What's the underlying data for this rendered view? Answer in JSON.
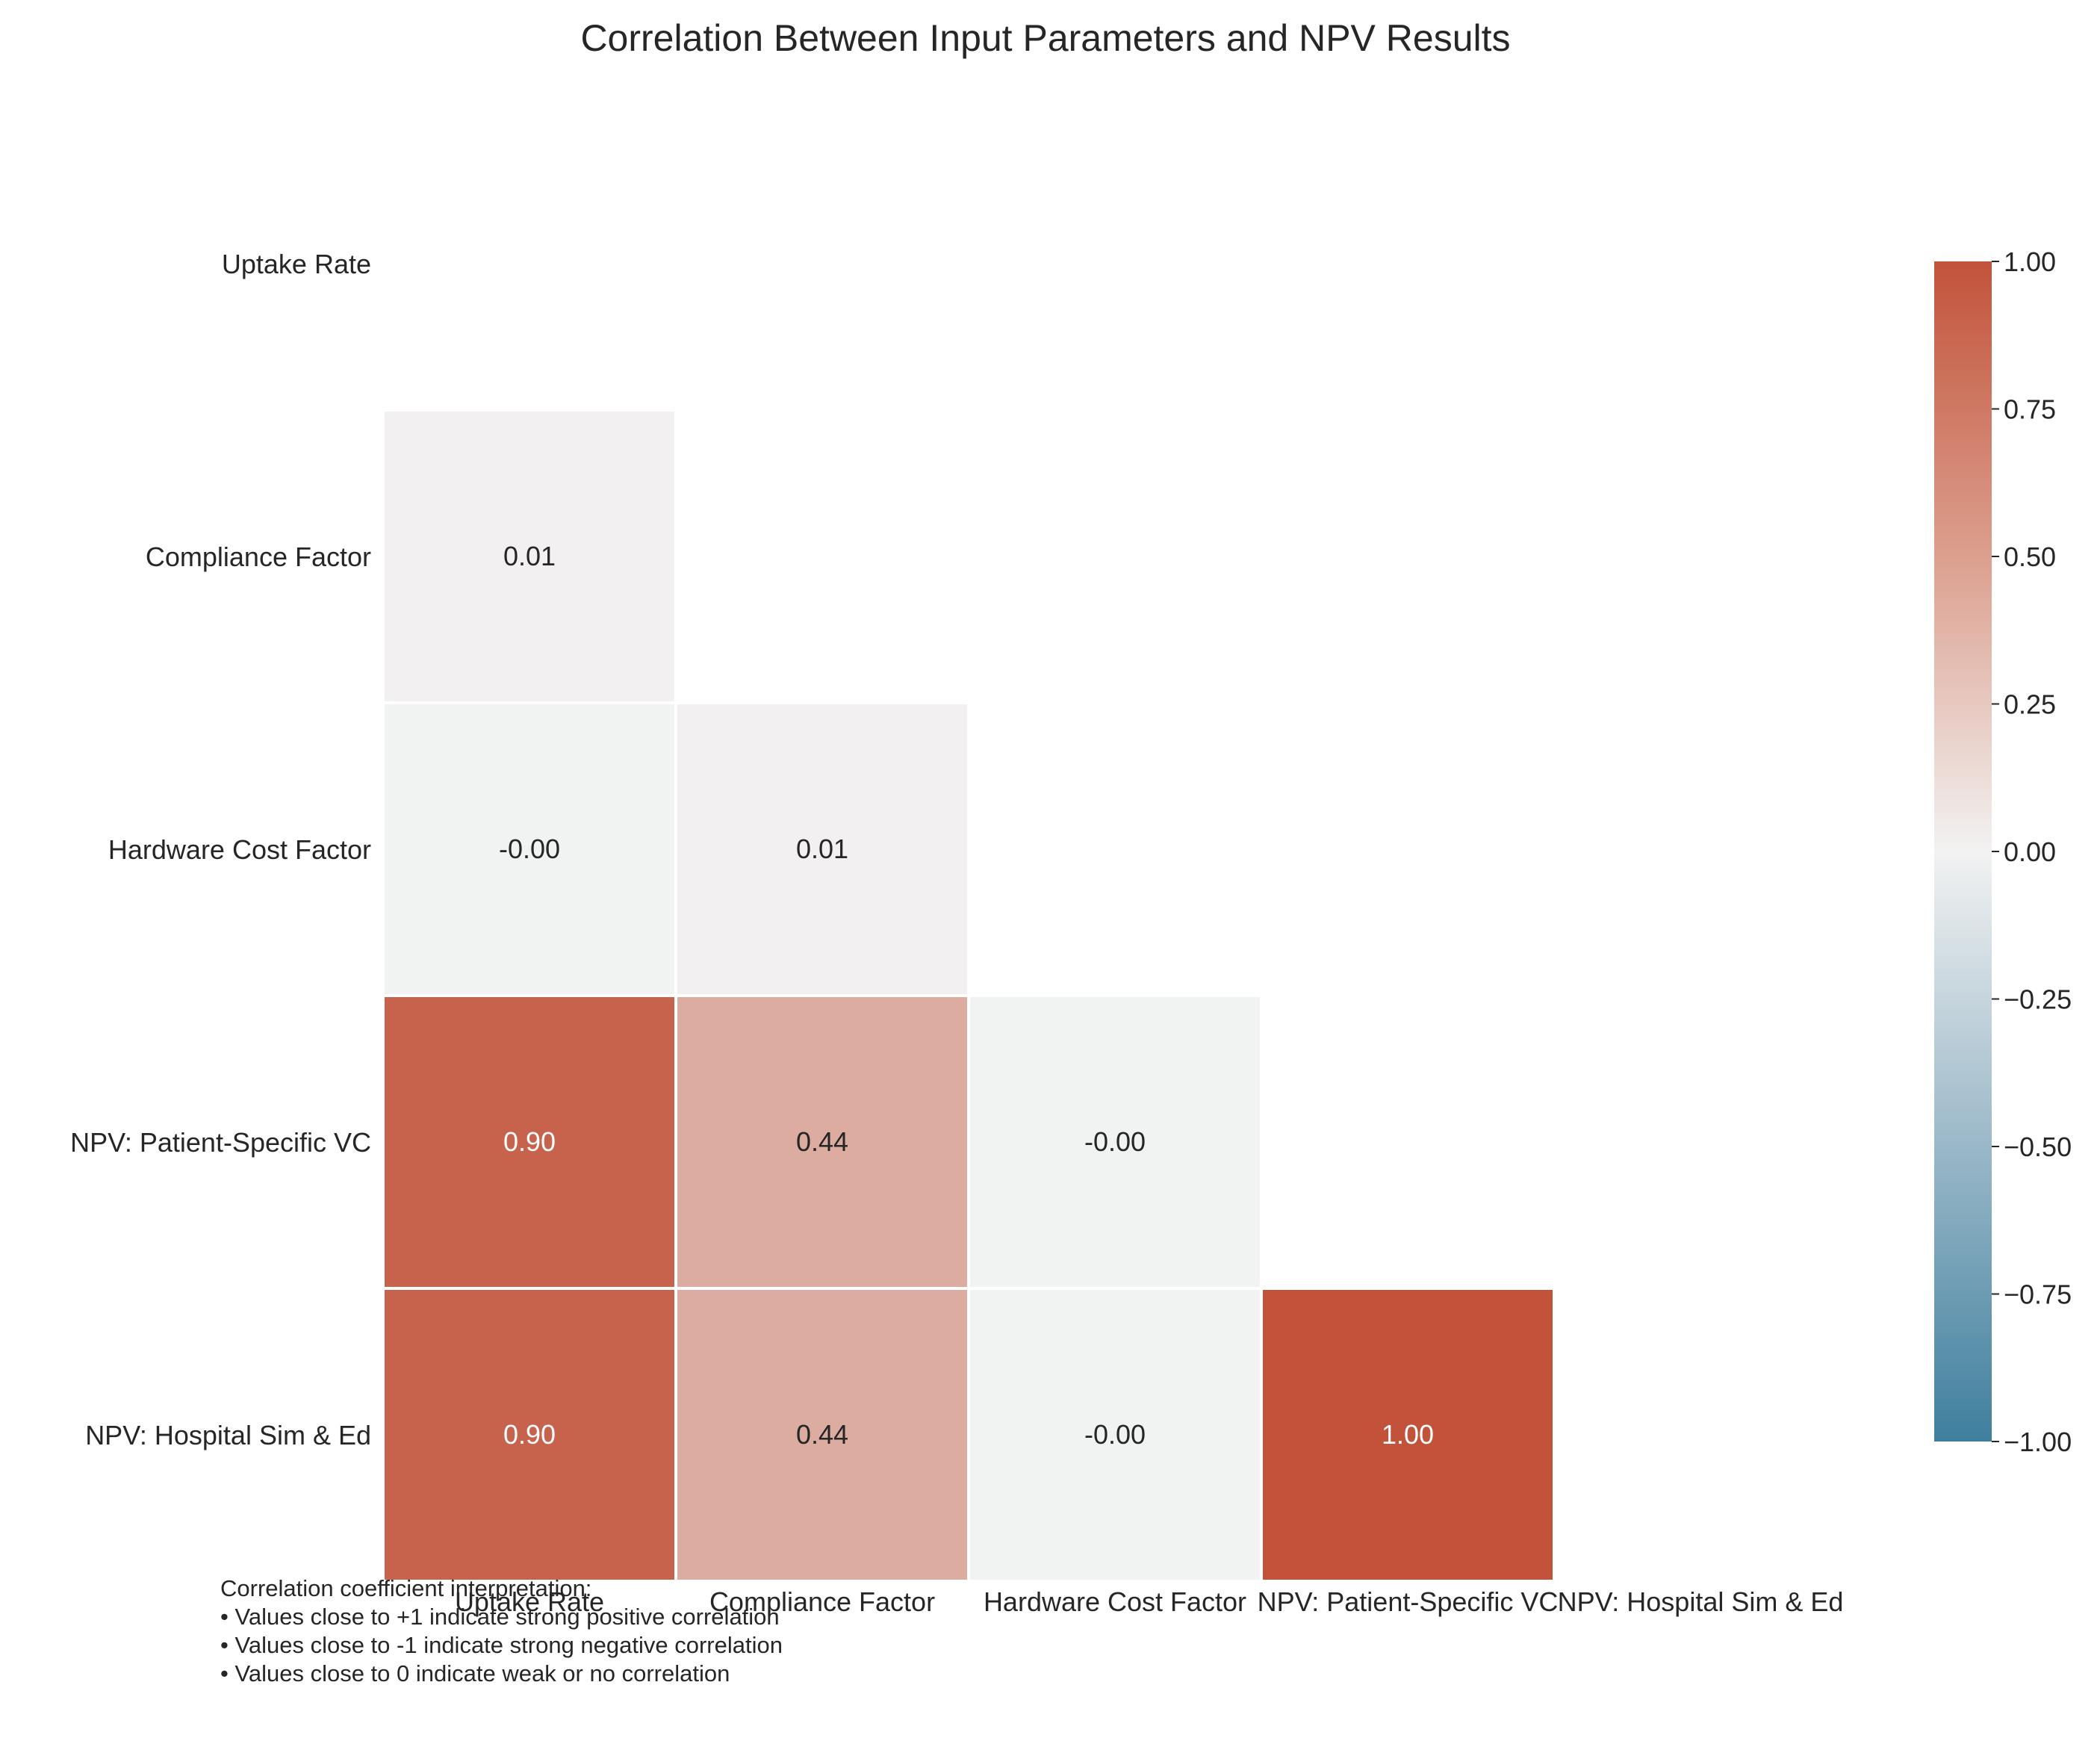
{
  "chart_data": {
    "type": "heatmap",
    "title": "Correlation Between Input Parameters and NPV Results",
    "row_labels": [
      "Uptake Rate",
      "Compliance Factor",
      "Hardware Cost Factor",
      "NPV: Patient-Specific VC",
      "NPV: Hospital Sim & Ed"
    ],
    "col_labels": [
      "Uptake Rate",
      "Compliance Factor",
      "Hardware Cost Factor",
      "NPV: Patient-Specific VC",
      "NPV: Hospital Sim & Ed"
    ],
    "mask": "upper-triangle-and-diagonal",
    "values": [
      [
        null,
        null,
        null,
        null,
        null
      ],
      [
        0.01,
        null,
        null,
        null,
        null
      ],
      [
        -0.004,
        0.01,
        null,
        null,
        null
      ],
      [
        0.9,
        0.44,
        -0.004,
        null,
        null
      ],
      [
        0.9,
        0.44,
        -0.004,
        1.0,
        null
      ]
    ],
    "value_labels": [
      [
        null,
        null,
        null,
        null,
        null
      ],
      [
        "0.01",
        null,
        null,
        null,
        null
      ],
      [
        "-0.00",
        "0.01",
        null,
        null,
        null
      ],
      [
        "0.90",
        "0.44",
        "-0.00",
        null,
        null
      ],
      [
        "0.90",
        "0.44",
        "-0.00",
        "1.00",
        null
      ]
    ],
    "colorbar": {
      "vmin": -1.0,
      "vmax": 1.0,
      "ticks": [
        1.0,
        0.75,
        0.5,
        0.25,
        0.0,
        -0.25,
        -0.5,
        -0.75,
        -1.0
      ],
      "tick_labels": [
        "1.00",
        "0.75",
        "0.50",
        "0.25",
        "0.00",
        "−0.25",
        "−0.50",
        "−0.75",
        "−1.00"
      ],
      "colors": {
        "low": "#3f7f9e",
        "mid": "#f2f2f2",
        "high": "#c2533a"
      },
      "placement": "right"
    },
    "grid": false,
    "annotations": [
      "Correlation coefficient interpretation:",
      "• Values close to +1 indicate strong positive correlation",
      "• Values close to -1 indicate strong negative correlation",
      "• Values close to 0 indicate weak or no correlation"
    ]
  }
}
